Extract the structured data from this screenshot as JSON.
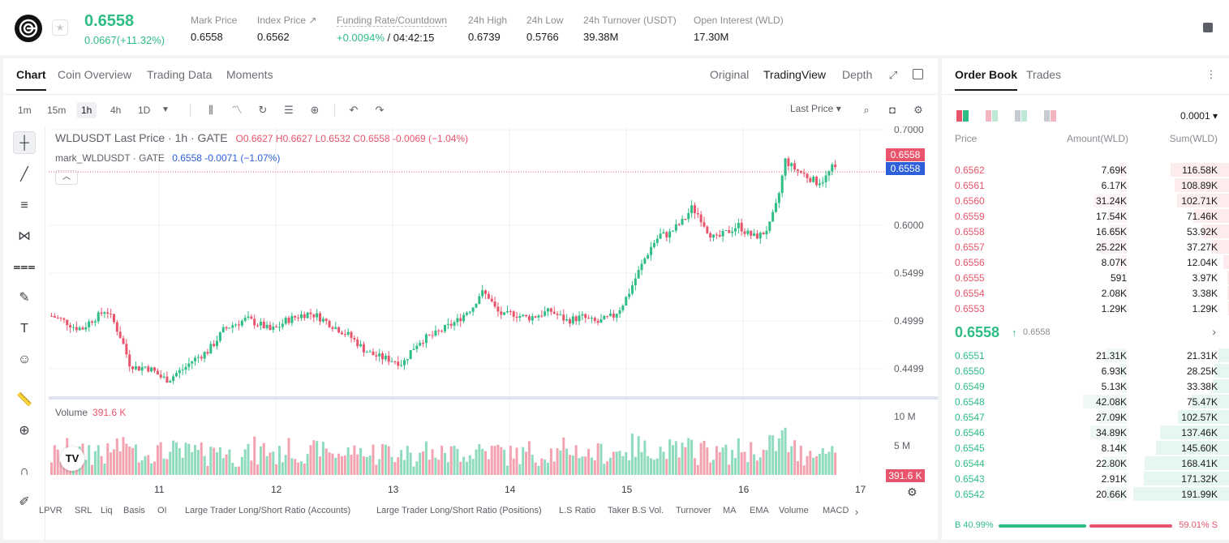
{
  "header": {
    "price": "0.6558",
    "change": "0.0667(+11.32%)",
    "stats": [
      {
        "label": "Mark Price",
        "value": "0.6558"
      },
      {
        "label": "Index Price ↗",
        "value": "0.6562"
      },
      {
        "label": "Funding Rate/Countdown",
        "value": "+0.0094%",
        "value2": "/ 04:42:15"
      },
      {
        "label": "24h High",
        "value": "0.6739"
      },
      {
        "label": "24h Low",
        "value": "0.5766"
      },
      {
        "label": "24h Turnover (USDT)",
        "value": "39.38M"
      },
      {
        "label": "Open Interest (WLD)",
        "value": "17.30M"
      }
    ]
  },
  "chart_tabs": [
    "Chart",
    "Coin Overview",
    "Trading Data",
    "Moments"
  ],
  "view_tabs": [
    "Original",
    "TradingView",
    "Depth"
  ],
  "timeframes": [
    "1m",
    "15m",
    "1h",
    "4h",
    "1D"
  ],
  "toolbar": {
    "last_price": "Last Price ▾"
  },
  "legend": {
    "title": "WLDUSDT Last Price · 1h · GATE",
    "ohlc": "O0.6627  H0.6627  L0.6532  C0.6558  -0.0069  (−1.04%)",
    "mark_title": "mark_WLDUSDT · GATE",
    "mark_values": "0.6558  -0.0071  (−1.07%)",
    "volume_label": "Volume",
    "volume_value": "391.6 K"
  },
  "axis_tags": {
    "last": "0.6558",
    "mark": "0.6558",
    "volume": "391.6 K"
  },
  "indicators": [
    "LPVR",
    "SRL",
    "Liq",
    "Basis",
    "OI",
    "Large Trader Long/Short Ratio (Accounts)",
    "Large Trader Long/Short Ratio (Positions)",
    "L.S Ratio",
    "Taker B.S Vol.",
    "Turnover",
    "MA",
    "EMA",
    "Volume",
    "MACD"
  ],
  "chart_data": {
    "type": "candlestick",
    "symbol": "WLDUSDT",
    "interval": "1h",
    "y_ticks": [
      "0.7000",
      "0.6000",
      "0.5499",
      "0.4999",
      "0.4499"
    ],
    "ylim": [
      0.42,
      0.7
    ],
    "x_ticks": [
      "11",
      "12",
      "13",
      "14",
      "15",
      "16",
      "17"
    ],
    "volume_ticks": [
      "10 M",
      "5 M"
    ],
    "close_path": [
      0.505,
      0.502,
      0.498,
      0.493,
      0.492,
      0.5,
      0.505,
      0.512,
      0.498,
      0.48,
      0.455,
      0.45,
      0.452,
      0.448,
      0.441,
      0.438,
      0.445,
      0.45,
      0.458,
      0.463,
      0.468,
      0.478,
      0.49,
      0.495,
      0.498,
      0.502,
      0.498,
      0.495,
      0.49,
      0.493,
      0.5,
      0.503,
      0.506,
      0.508,
      0.505,
      0.5,
      0.495,
      0.49,
      0.485,
      0.478,
      0.47,
      0.465,
      0.462,
      0.46,
      0.458,
      0.455,
      0.468,
      0.478,
      0.482,
      0.485,
      0.49,
      0.495,
      0.5,
      0.508,
      0.515,
      0.53,
      0.525,
      0.51,
      0.505,
      0.508,
      0.505,
      0.503,
      0.505,
      0.508,
      0.51,
      0.505,
      0.5,
      0.502,
      0.504,
      0.5,
      0.498,
      0.502,
      0.505,
      0.515,
      0.53,
      0.548,
      0.565,
      0.58,
      0.59,
      0.59,
      0.598,
      0.605,
      0.618,
      0.61,
      0.595,
      0.585,
      0.59,
      0.595,
      0.6,
      0.592,
      0.588,
      0.59,
      0.6,
      0.625,
      0.668,
      0.66,
      0.655,
      0.65,
      0.645,
      0.648,
      0.66,
      0.658
    ]
  },
  "order_book": {
    "tabs": [
      "Order Book",
      "Trades"
    ],
    "precision": "0.0001 ▾",
    "headers": {
      "price": "Price",
      "amount": "Amount(WLD)",
      "sum": "Sum(WLD)"
    },
    "asks": [
      {
        "price": "0.6562",
        "amount": "7.69K",
        "sum": "116.58K",
        "amt_frac": 0.06,
        "sum_frac": 0.61
      },
      {
        "price": "0.6561",
        "amount": "6.17K",
        "sum": "108.89K",
        "amt_frac": 0.05,
        "sum_frac": 0.57
      },
      {
        "price": "0.6560",
        "amount": "31.24K",
        "sum": "102.71K",
        "amt_frac": 0.27,
        "sum_frac": 0.54
      },
      {
        "price": "0.6559",
        "amount": "17.54K",
        "sum": "71.46K",
        "amt_frac": 0.15,
        "sum_frac": 0.37
      },
      {
        "price": "0.6558",
        "amount": "16.65K",
        "sum": "53.92K",
        "amt_frac": 0.14,
        "sum_frac": 0.28
      },
      {
        "price": "0.6557",
        "amount": "25.22K",
        "sum": "37.27K",
        "amt_frac": 0.21,
        "sum_frac": 0.19
      },
      {
        "price": "0.6556",
        "amount": "8.07K",
        "sum": "12.04K",
        "amt_frac": 0.07,
        "sum_frac": 0.06
      },
      {
        "price": "0.6555",
        "amount": "591",
        "sum": "3.97K",
        "amt_frac": 0.01,
        "sum_frac": 0.02
      },
      {
        "price": "0.6554",
        "amount": "2.08K",
        "sum": "3.38K",
        "amt_frac": 0.02,
        "sum_frac": 0.02
      },
      {
        "price": "0.6553",
        "amount": "1.29K",
        "sum": "1.29K",
        "amt_frac": 0.01,
        "sum_frac": 0.01
      }
    ],
    "mid": {
      "price": "0.6558",
      "arrow": "↑",
      "mark": "0.6558"
    },
    "bids": [
      {
        "price": "0.6551",
        "amount": "21.31K",
        "sum": "21.31K",
        "amt_frac": 0.18,
        "sum_frac": 0.11
      },
      {
        "price": "0.6550",
        "amount": "6.93K",
        "sum": "28.25K",
        "amt_frac": 0.06,
        "sum_frac": 0.15
      },
      {
        "price": "0.6549",
        "amount": "5.13K",
        "sum": "33.38K",
        "amt_frac": 0.04,
        "sum_frac": 0.17
      },
      {
        "price": "0.6548",
        "amount": "42.08K",
        "sum": "75.47K",
        "amt_frac": 0.36,
        "sum_frac": 0.39
      },
      {
        "price": "0.6547",
        "amount": "27.09K",
        "sum": "102.57K",
        "amt_frac": 0.23,
        "sum_frac": 0.53
      },
      {
        "price": "0.6546",
        "amount": "34.89K",
        "sum": "137.46K",
        "amt_frac": 0.3,
        "sum_frac": 0.72
      },
      {
        "price": "0.6545",
        "amount": "8.14K",
        "sum": "145.60K",
        "amt_frac": 0.07,
        "sum_frac": 0.76
      },
      {
        "price": "0.6544",
        "amount": "22.80K",
        "sum": "168.41K",
        "amt_frac": 0.19,
        "sum_frac": 0.88
      },
      {
        "price": "0.6543",
        "amount": "2.91K",
        "sum": "171.32K",
        "amt_frac": 0.02,
        "sum_frac": 0.89
      },
      {
        "price": "0.6542",
        "amount": "20.66K",
        "sum": "191.99K",
        "amt_frac": 0.18,
        "sum_frac": 1.0
      }
    ],
    "buy_ratio": "B 40.99%",
    "sell_ratio": "59.01% S"
  },
  "colors": {
    "up": "#2ebd85",
    "down": "#e8546b",
    "mark": "#2c5fd9"
  }
}
